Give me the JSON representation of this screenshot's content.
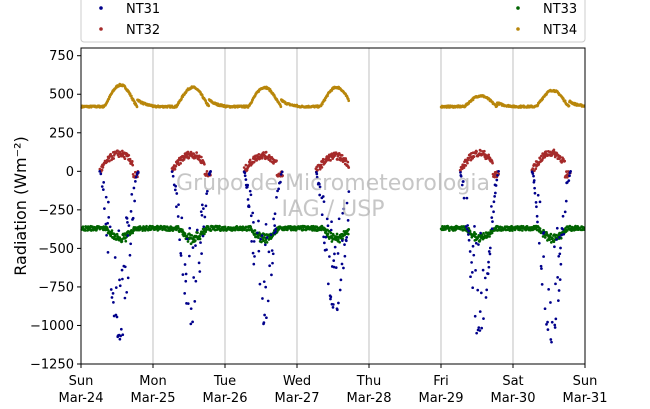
{
  "chart_data": {
    "type": "scatter",
    "ylabel": "Radiation (Wm⁻²)",
    "ylim": [
      -1250,
      800
    ],
    "yticks": [
      -1250,
      -1000,
      -750,
      -500,
      -250,
      0,
      250,
      500,
      750
    ],
    "ytick_labels": [
      "−1250",
      "−1000",
      "−750",
      "−500",
      "−250",
      "0",
      "250",
      "500",
      "750"
    ],
    "x_unit": "days",
    "xlim": [
      0,
      7
    ],
    "xticks": [
      {
        "day": 0,
        "weekday": "Sun",
        "date": "Mar-24"
      },
      {
        "day": 1,
        "weekday": "Mon",
        "date": "Mar-25"
      },
      {
        "day": 2,
        "weekday": "Tue",
        "date": "Mar-26"
      },
      {
        "day": 3,
        "weekday": "Wed",
        "date": "Mar-27"
      },
      {
        "day": 4,
        "weekday": "Thu",
        "date": "Mar-28"
      },
      {
        "day": 5,
        "weekday": "Fri",
        "date": "Mar-29"
      },
      {
        "day": 6,
        "weekday": "Sat",
        "date": "Mar-30"
      },
      {
        "day": 7,
        "weekday": "Sun",
        "date": "Mar-31"
      }
    ],
    "grid": "vertical",
    "legend_placement": "top",
    "watermark_lines": [
      "Grupo de Micrometeorologia",
      "IAG / USP"
    ],
    "data_gap": [
      3.72,
      5.0
    ],
    "series": [
      {
        "name": "NT31",
        "color": "#00008b",
        "daily_min": [
          [
            0.55,
            -1100
          ],
          [
            1.5,
            -990
          ],
          [
            2.55,
            -990
          ],
          [
            3.55,
            -930
          ],
          [
            5.55,
            -1050
          ],
          [
            6.55,
            -1110
          ]
        ]
      },
      {
        "name": "NT32",
        "color": "#a52a2a",
        "daily_peak": [
          [
            0.55,
            115
          ],
          [
            1.5,
            110
          ],
          [
            2.5,
            105
          ],
          [
            3.5,
            100
          ],
          [
            5.5,
            120
          ],
          [
            6.5,
            120
          ]
        ]
      },
      {
        "name": "NT33",
        "color": "#006400",
        "night_level": -370,
        "daytime_dip": -450
      },
      {
        "name": "NT34",
        "color": "#b8860b",
        "night_level": 420,
        "daily_peak": [
          [
            0.55,
            560
          ],
          [
            1.55,
            545
          ],
          [
            2.5,
            545
          ],
          [
            3.5,
            545
          ],
          [
            5.6,
            490
          ],
          [
            6.55,
            525
          ]
        ]
      }
    ]
  }
}
